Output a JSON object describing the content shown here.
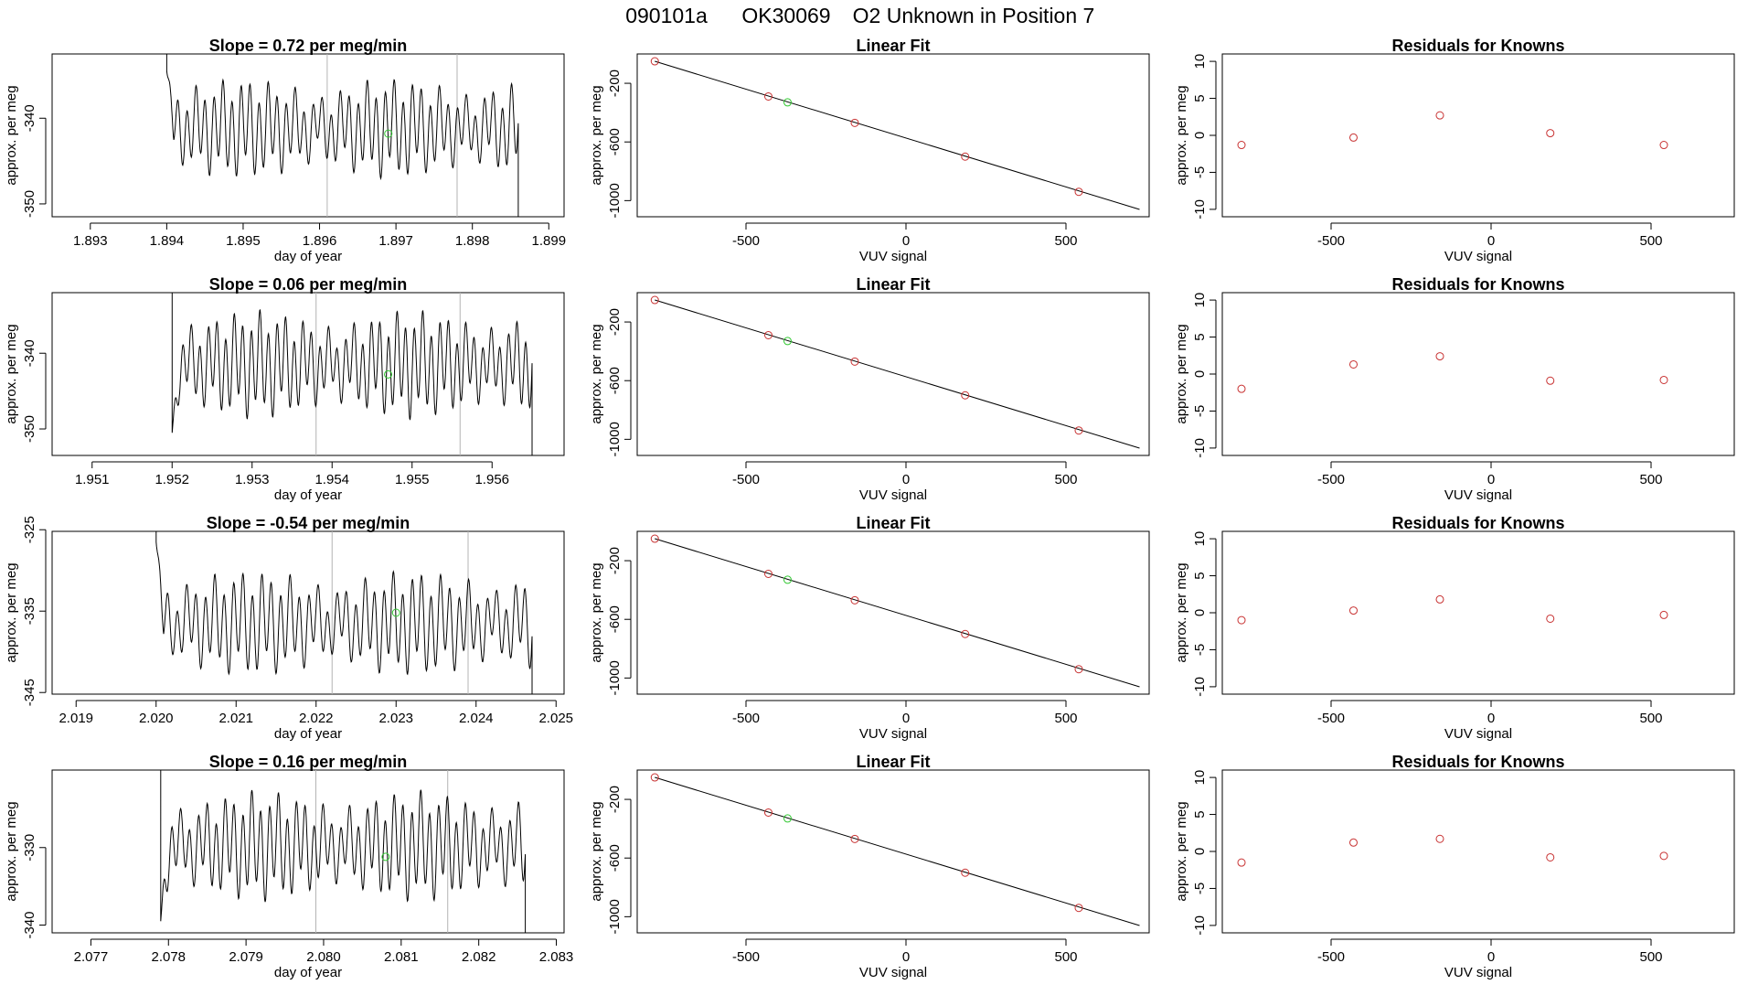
{
  "header": {
    "title_date": "090101a",
    "title_id": "OK30069",
    "title_desc": "O2 Unknown in Position  7"
  },
  "colors": {
    "trace": "#000000",
    "known_point": "#c83232",
    "unknown_point": "#32c832",
    "marker_line": "#b4b4b4",
    "fit_line": "#000000"
  },
  "chart_data": [
    {
      "type": "line",
      "title": "Slope =  0.72  per meg/min",
      "xlabel": "day of year",
      "ylabel": "approx. per meg",
      "xlim": [
        1.8925,
        1.8992
      ],
      "ylim": [
        -351.5,
        -332.5
      ],
      "xticks": [
        1.893,
        1.894,
        1.895,
        1.896,
        1.897,
        1.898,
        1.899
      ],
      "xtick_labels": [
        "1.893",
        "1.894",
        "1.895",
        "1.896",
        "1.897",
        "1.898",
        "1.899"
      ],
      "yticks": [
        -350,
        -340
      ],
      "ytick_labels": [
        "-350",
        "-340"
      ],
      "segment_x": [
        1.894,
        1.8986
      ],
      "start_y": -334.5,
      "y_center": -341.2,
      "amplitude": 4.5,
      "cycles": 39,
      "vertical_markers": [
        1.8961,
        1.8978
      ],
      "unknown_point": {
        "x": 1.8969,
        "y": -341.8
      }
    },
    {
      "type": "scatter",
      "title": "Linear Fit",
      "xlabel": "VUV signal",
      "ylabel": "approx. per meg",
      "xlim": [
        -840,
        760
      ],
      "ylim": [
        -1110,
        0
      ],
      "xticks": [
        -500,
        0,
        500
      ],
      "xtick_labels": [
        "-500",
        "0",
        "500"
      ],
      "yticks": [
        -200,
        -600,
        -1000
      ],
      "ytick_labels": [
        "-200",
        "-600",
        "-1000"
      ],
      "fit_line": {
        "x": [
          -785,
          730
        ],
        "y": [
          -50,
          -1060
        ]
      },
      "known_points": [
        {
          "x": -785,
          "y": -50
        },
        {
          "x": -430,
          "y": -290
        },
        {
          "x": -160,
          "y": -470
        },
        {
          "x": 185,
          "y": -700
        },
        {
          "x": 540,
          "y": -940
        }
      ],
      "unknown_points": [
        {
          "x": -370,
          "y": -330
        }
      ]
    },
    {
      "type": "scatter",
      "title": "Residuals for Knowns",
      "xlabel": "VUV signal",
      "ylabel": "approx. per meg",
      "xlim": [
        -840,
        760
      ],
      "ylim": [
        -11,
        11
      ],
      "xticks": [
        -500,
        0,
        500
      ],
      "xtick_labels": [
        "-500",
        "0",
        "500"
      ],
      "yticks": [
        -10,
        -5,
        0,
        5,
        10
      ],
      "ytick_labels": [
        "-10",
        "-5",
        "0",
        "5",
        "10"
      ],
      "points": [
        {
          "x": -780,
          "y": -1.3
        },
        {
          "x": -430,
          "y": -0.3
        },
        {
          "x": -160,
          "y": 2.7
        },
        {
          "x": 185,
          "y": 0.3
        },
        {
          "x": 540,
          "y": -1.3
        }
      ]
    },
    {
      "type": "line",
      "title": "Slope =  0.06  per meg/min",
      "xlabel": "day of year",
      "ylabel": "approx. per meg",
      "xlim": [
        1.9505,
        1.9569
      ],
      "ylim": [
        -353.5,
        -332
      ],
      "xticks": [
        1.951,
        1.952,
        1.953,
        1.954,
        1.955,
        1.956
      ],
      "xtick_labels": [
        "1.951",
        "1.952",
        "1.953",
        "1.954",
        "1.955",
        "1.956"
      ],
      "yticks": [
        -350,
        -340
      ],
      "ytick_labels": [
        "-350",
        "-340"
      ],
      "segment_x": [
        1.952,
        1.9565
      ],
      "start_y": -350.5,
      "y_center": -341.5,
      "amplitude": 5.5,
      "cycles": 42,
      "vertical_markers": [
        1.9538,
        1.9556
      ],
      "unknown_point": {
        "x": 1.9547,
        "y": -342.8
      }
    },
    {
      "type": "scatter",
      "title": "Linear Fit",
      "xlabel": "VUV signal",
      "ylabel": "approx. per meg",
      "xlim": [
        -840,
        760
      ],
      "ylim": [
        -1110,
        0
      ],
      "xticks": [
        -500,
        0,
        500
      ],
      "xtick_labels": [
        "-500",
        "0",
        "500"
      ],
      "yticks": [
        -200,
        -600,
        -1000
      ],
      "ytick_labels": [
        "-200",
        "-600",
        "-1000"
      ],
      "fit_line": {
        "x": [
          -785,
          730
        ],
        "y": [
          -50,
          -1060
        ]
      },
      "known_points": [
        {
          "x": -785,
          "y": -50
        },
        {
          "x": -430,
          "y": -290
        },
        {
          "x": -160,
          "y": -470
        },
        {
          "x": 185,
          "y": -700
        },
        {
          "x": 540,
          "y": -940
        }
      ],
      "unknown_points": [
        {
          "x": -370,
          "y": -330
        }
      ]
    },
    {
      "type": "scatter",
      "title": "Residuals for Knowns",
      "xlabel": "VUV signal",
      "ylabel": "approx. per meg",
      "xlim": [
        -840,
        760
      ],
      "ylim": [
        -11,
        11
      ],
      "xticks": [
        -500,
        0,
        500
      ],
      "xtick_labels": [
        "-500",
        "0",
        "500"
      ],
      "yticks": [
        -10,
        -5,
        0,
        5,
        10
      ],
      "ytick_labels": [
        "-10",
        "-5",
        "0",
        "5",
        "10"
      ],
      "points": [
        {
          "x": -780,
          "y": -2.0
        },
        {
          "x": -430,
          "y": 1.3
        },
        {
          "x": -160,
          "y": 2.4
        },
        {
          "x": 185,
          "y": -0.9
        },
        {
          "x": 540,
          "y": -0.8
        }
      ]
    },
    {
      "type": "line",
      "title": "Slope =  -0.54  per meg/min",
      "xlabel": "day of year",
      "ylabel": "approx. per meg",
      "xlim": [
        2.0187,
        2.0251
      ],
      "ylim": [
        -345.2,
        -325.2
      ],
      "xticks": [
        2.019,
        2.02,
        2.021,
        2.022,
        2.023,
        2.024,
        2.025
      ],
      "xtick_labels": [
        "2.019",
        "2.020",
        "2.021",
        "2.022",
        "2.023",
        "2.024",
        "2.025"
      ],
      "yticks": [
        -345,
        -335,
        -325
      ],
      "ytick_labels": [
        "-345",
        "-335",
        "-325"
      ],
      "segment_x": [
        2.02,
        2.0247
      ],
      "start_y": -326.5,
      "y_center": -336.5,
      "amplitude": 5.0,
      "cycles": 40,
      "vertical_markers": [
        2.0222,
        2.0239
      ],
      "unknown_point": {
        "x": 2.023,
        "y": -335.2
      }
    },
    {
      "type": "scatter",
      "title": "Linear Fit",
      "xlabel": "VUV signal",
      "ylabel": "approx. per meg",
      "xlim": [
        -840,
        760
      ],
      "ylim": [
        -1110,
        0
      ],
      "xticks": [
        -500,
        0,
        500
      ],
      "xtick_labels": [
        "-500",
        "0",
        "500"
      ],
      "yticks": [
        -200,
        -600,
        -1000
      ],
      "ytick_labels": [
        "-200",
        "-600",
        "-1000"
      ],
      "fit_line": {
        "x": [
          -785,
          730
        ],
        "y": [
          -50,
          -1060
        ]
      },
      "known_points": [
        {
          "x": -785,
          "y": -50
        },
        {
          "x": -430,
          "y": -290
        },
        {
          "x": -160,
          "y": -470
        },
        {
          "x": 185,
          "y": -700
        },
        {
          "x": 540,
          "y": -940
        }
      ],
      "unknown_points": [
        {
          "x": -370,
          "y": -330
        }
      ]
    },
    {
      "type": "scatter",
      "title": "Residuals for Knowns",
      "xlabel": "VUV signal",
      "ylabel": "approx. per meg",
      "xlim": [
        -840,
        760
      ],
      "ylim": [
        -11,
        11
      ],
      "xticks": [
        -500,
        0,
        500
      ],
      "xtick_labels": [
        "-500",
        "0",
        "500"
      ],
      "yticks": [
        -10,
        -5,
        0,
        5,
        10
      ],
      "ytick_labels": [
        "-10",
        "-5",
        "0",
        "5",
        "10"
      ],
      "points": [
        {
          "x": -780,
          "y": -1.0
        },
        {
          "x": -430,
          "y": 0.3
        },
        {
          "x": -160,
          "y": 1.8
        },
        {
          "x": 185,
          "y": -0.8
        },
        {
          "x": 540,
          "y": -0.3
        }
      ]
    },
    {
      "type": "line",
      "title": "Slope =  0.16  per meg/min",
      "xlabel": "day of year",
      "ylabel": "approx. per meg",
      "xlim": [
        2.0765,
        2.0831
      ],
      "ylim": [
        -341,
        -320
      ],
      "xticks": [
        2.077,
        2.078,
        2.079,
        2.08,
        2.081,
        2.082,
        2.083
      ],
      "xtick_labels": [
        "2.077",
        "2.078",
        "2.079",
        "2.080",
        "2.081",
        "2.082",
        "2.083"
      ],
      "yticks": [
        -340,
        -330
      ],
      "ytick_labels": [
        "-340",
        "-330"
      ],
      "segment_x": [
        2.0779,
        2.0826
      ],
      "start_y": -339.5,
      "y_center": -329.8,
      "amplitude": 5.5,
      "cycles": 41,
      "vertical_markers": [
        2.0799,
        2.0816
      ],
      "unknown_point": {
        "x": 2.0808,
        "y": -331.2
      }
    },
    {
      "type": "scatter",
      "title": "Linear Fit",
      "xlabel": "VUV signal",
      "ylabel": "approx. per meg",
      "xlim": [
        -840,
        760
      ],
      "ylim": [
        -1110,
        0
      ],
      "xticks": [
        -500,
        0,
        500
      ],
      "xtick_labels": [
        "-500",
        "0",
        "500"
      ],
      "yticks": [
        -200,
        -600,
        -1000
      ],
      "ytick_labels": [
        "-200",
        "-600",
        "-1000"
      ],
      "fit_line": {
        "x": [
          -785,
          730
        ],
        "y": [
          -50,
          -1060
        ]
      },
      "known_points": [
        {
          "x": -785,
          "y": -50
        },
        {
          "x": -430,
          "y": -290
        },
        {
          "x": -160,
          "y": -470
        },
        {
          "x": 185,
          "y": -700
        },
        {
          "x": 540,
          "y": -940
        }
      ],
      "unknown_points": [
        {
          "x": -370,
          "y": -330
        }
      ]
    },
    {
      "type": "scatter",
      "title": "Residuals for Knowns",
      "xlabel": "VUV signal",
      "ylabel": "approx. per meg",
      "xlim": [
        -840,
        760
      ],
      "ylim": [
        -11,
        11
      ],
      "xticks": [
        -500,
        0,
        500
      ],
      "xtick_labels": [
        "-500",
        "0",
        "500"
      ],
      "yticks": [
        -10,
        -5,
        0,
        5,
        10
      ],
      "ytick_labels": [
        "-10",
        "-5",
        "0",
        "5",
        "10"
      ],
      "points": [
        {
          "x": -780,
          "y": -1.5
        },
        {
          "x": -430,
          "y": 1.2
        },
        {
          "x": -160,
          "y": 1.7
        },
        {
          "x": 185,
          "y": -0.8
        },
        {
          "x": 540,
          "y": -0.6
        }
      ]
    }
  ]
}
